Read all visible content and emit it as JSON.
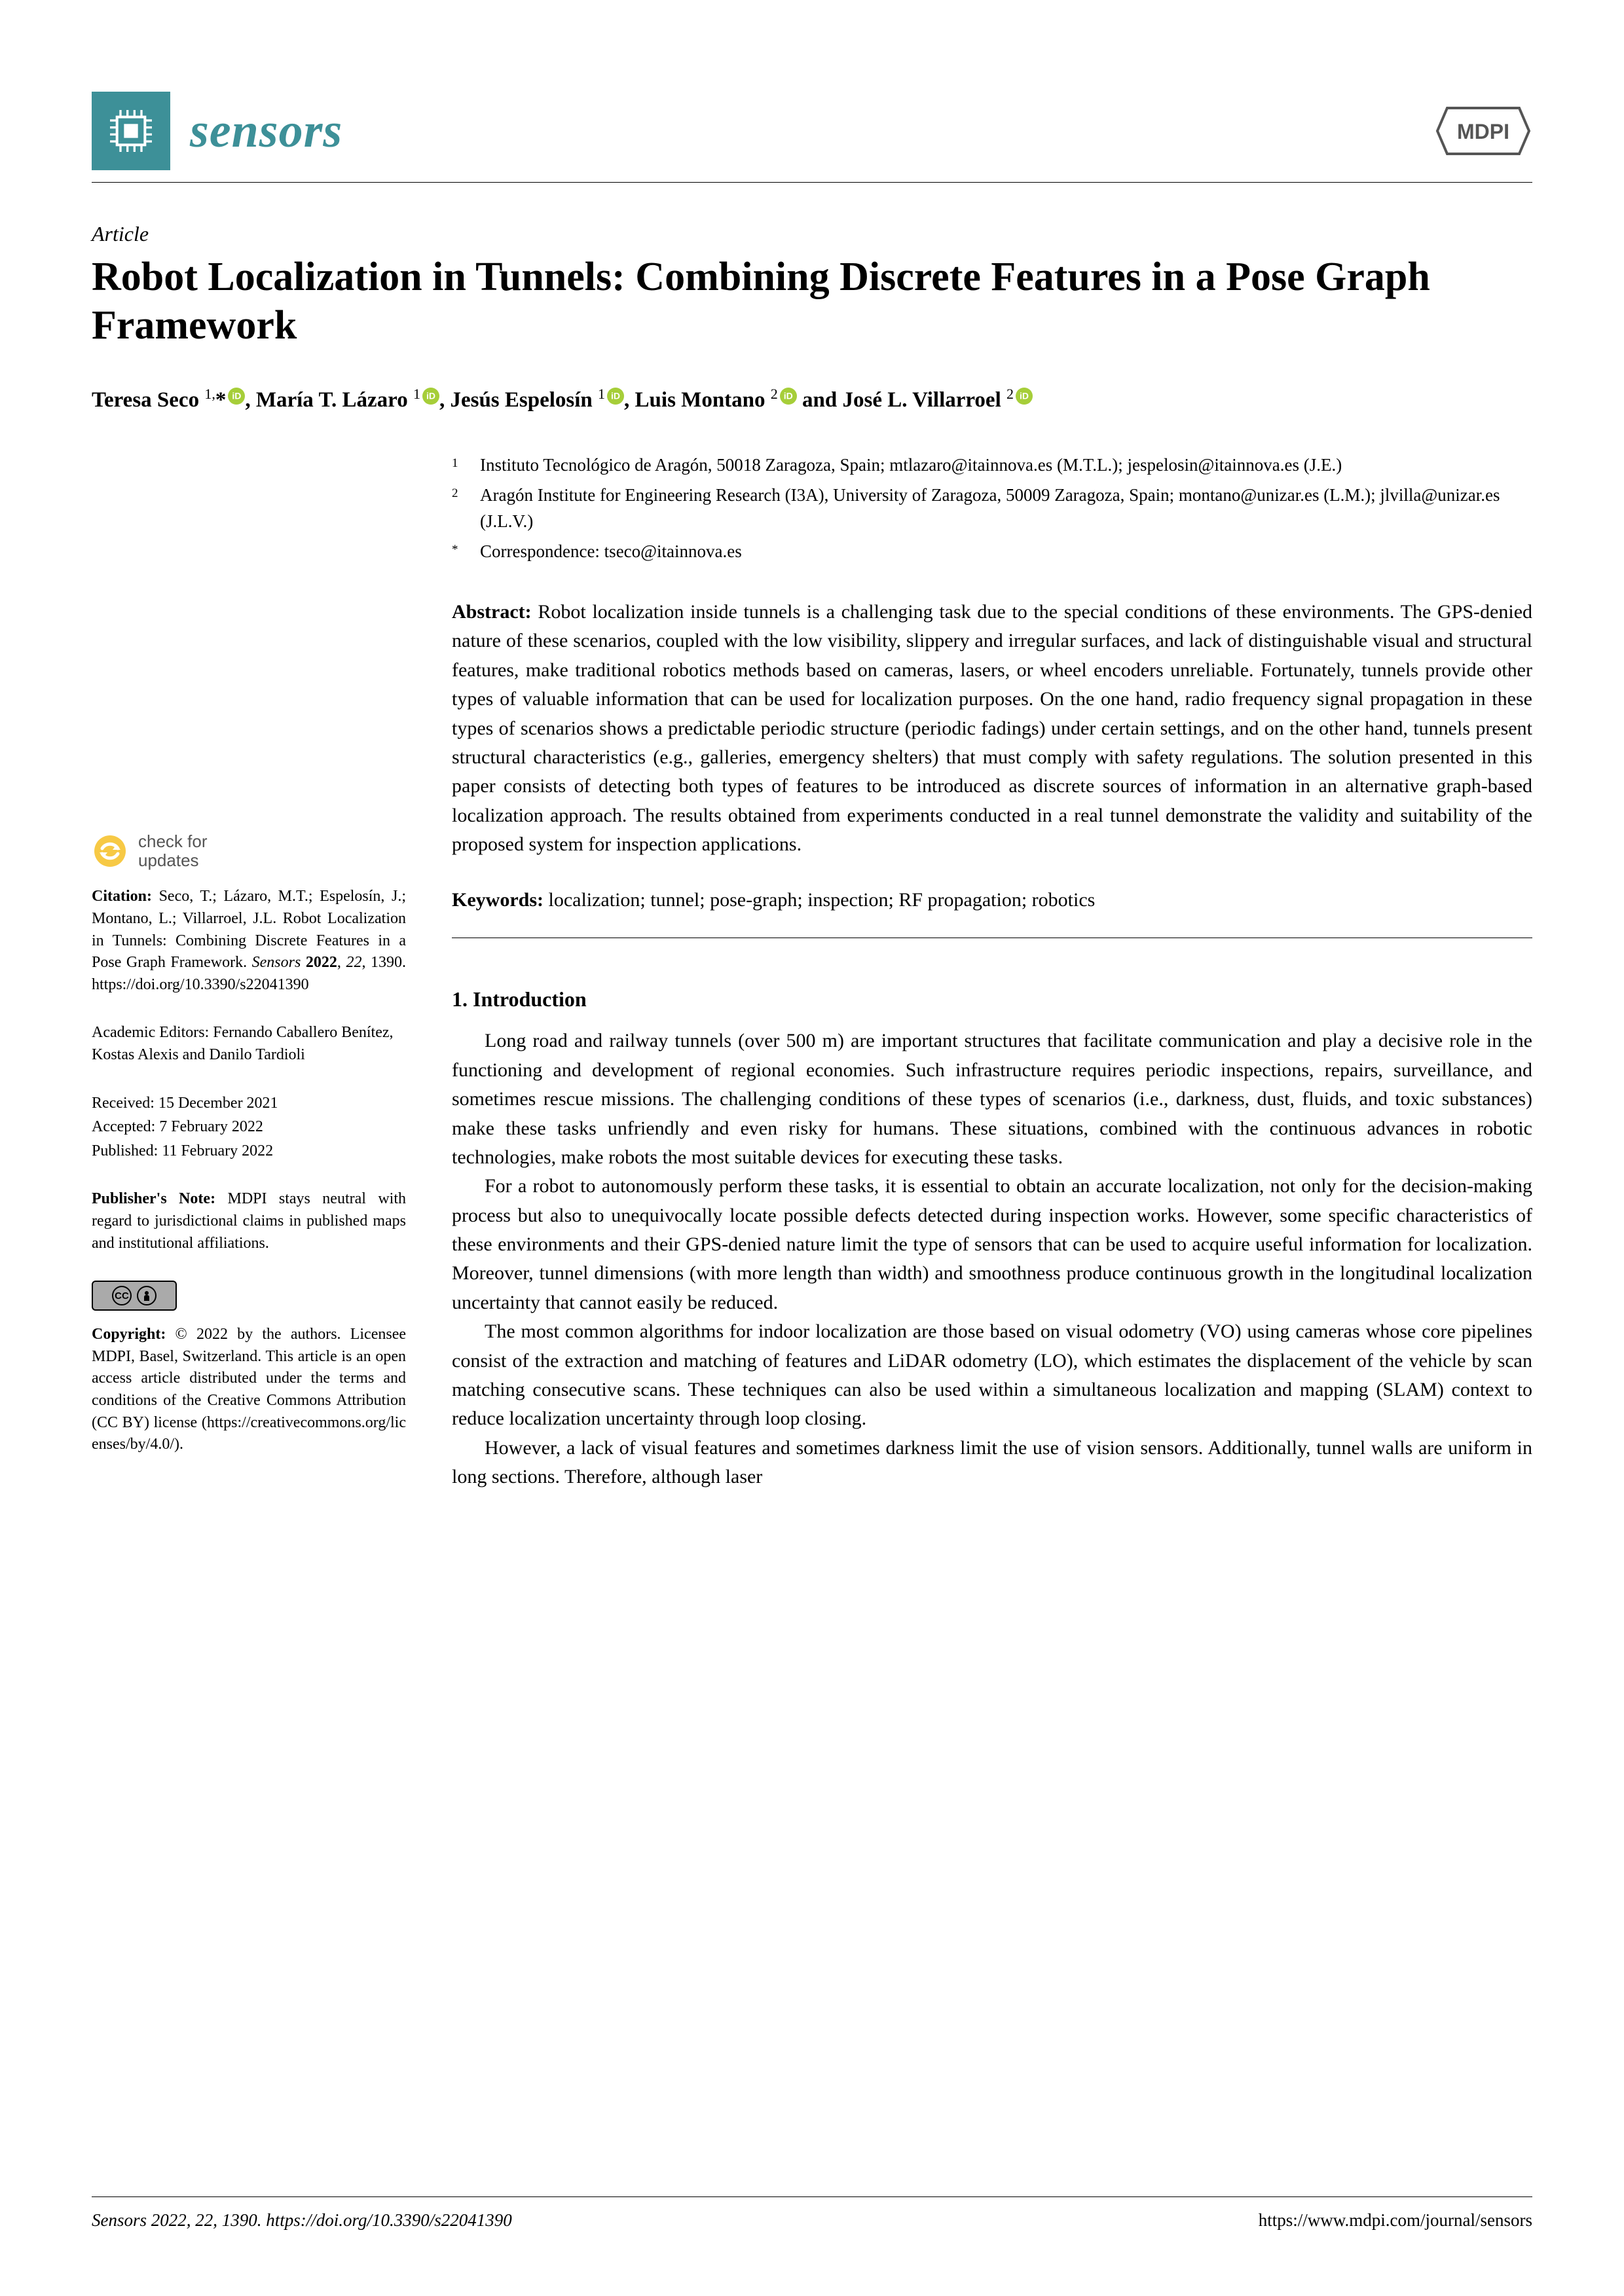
{
  "journal": {
    "name": "sensors",
    "brand_color": "#3d9098",
    "publisher": "MDPI"
  },
  "article_type": "Article",
  "title": "Robot Localization in Tunnels: Combining Discrete Features in a Pose Graph Framework",
  "authors_html": "Teresa Seco <span class='sup'>1,</span>*<span class='orcid'></span>, María T. Lázaro <span class='sup'>1</span><span class='orcid'></span>, Jesús Espelosín <span class='sup'>1</span><span class='orcid'></span>, Luis Montano <span class='sup'>2</span><span class='orcid'></span> and José L. Villarroel <span class='sup'>2</span><span class='orcid'></span>",
  "affiliations": [
    {
      "num": "1",
      "text": "Instituto Tecnológico de Aragón, 50018 Zaragoza, Spain; mtlazaro@itainnova.es (M.T.L.); jespelosin@itainnova.es (J.E.)"
    },
    {
      "num": "2",
      "text": "Aragón Institute for Engineering Research (I3A), University of Zaragoza, 50009 Zaragoza, Spain; montano@unizar.es (L.M.); jlvilla@unizar.es (J.L.V.)"
    },
    {
      "num": "*",
      "text": "Correspondence: tseco@itainnova.es"
    }
  ],
  "abstract_label": "Abstract:",
  "abstract": "Robot localization inside tunnels is a challenging task due to the special conditions of these environments. The GPS-denied nature of these scenarios, coupled with the low visibility, slippery and irregular surfaces, and lack of distinguishable visual and structural features, make traditional robotics methods based on cameras, lasers, or wheel encoders unreliable. Fortunately, tunnels provide other types of valuable information that can be used for localization purposes. On the one hand, radio frequency signal propagation in these types of scenarios shows a predictable periodic structure (periodic fadings) under certain settings, and on the other hand, tunnels present structural characteristics (e.g., galleries, emergency shelters) that must comply with safety regulations. The solution presented in this paper consists of detecting both types of features to be introduced as discrete sources of information in an alternative graph-based localization approach. The results obtained from experiments conducted in a real tunnel demonstrate the validity and suitability of the proposed system for inspection applications.",
  "keywords_label": "Keywords:",
  "keywords": "localization; tunnel; pose-graph; inspection; RF propagation; robotics",
  "section1_heading": "1. Introduction",
  "paragraphs": [
    "Long road and railway tunnels (over 500 m) are important structures that facilitate communication and play a decisive role in the functioning and development of regional economies. Such infrastructure requires periodic inspections, repairs, surveillance, and sometimes rescue missions. The challenging conditions of these types of scenarios (i.e., darkness, dust, fluids, and toxic substances) make these tasks unfriendly and even risky for humans. These situations, combined with the continuous advances in robotic technologies, make robots the most suitable devices for executing these tasks.",
    "For a robot to autonomously perform these tasks, it is essential to obtain an accurate localization, not only for the decision-making process but also to unequivocally locate possible defects detected during inspection works. However, some specific characteristics of these environments and their GPS-denied nature limit the type of sensors that can be used to acquire useful information for localization. Moreover, tunnel dimensions (with more length than width) and smoothness produce continuous growth in the longitudinal localization uncertainty that cannot easily be reduced.",
    "The most common algorithms for indoor localization are those based on visual odometry (VO) using cameras whose core pipelines consist of the extraction and matching of features and LiDAR odometry (LO), which estimates the displacement of the vehicle by scan matching consecutive scans. These techniques can also be used within a simultaneous localization and mapping (SLAM) context to reduce localization uncertainty through loop closing.",
    "However, a lack of visual features and sometimes darkness limit the use of vision sensors. Additionally, tunnel walls are uniform in long sections. Therefore, although laser"
  ],
  "sidebar": {
    "check_updates": "check for\nupdates",
    "citation_label": "Citation:",
    "citation": "Seco, T.; Lázaro, M.T.; Espelosín, J.; Montano, L.; Villarroel, J.L. Robot Localization in Tunnels: Combining Discrete Features in a Pose Graph Framework. Sensors 2022, 22, 1390. https://doi.org/10.3390/s22041390",
    "editors_label": "Academic Editors:",
    "editors": "Fernando Caballero Benítez, Kostas Alexis and Danilo Tardioli",
    "received": "Received: 15 December 2021",
    "accepted": "Accepted: 7 February 2022",
    "published": "Published: 11 February 2022",
    "pub_note_label": "Publisher's Note:",
    "pub_note": "MDPI stays neutral with regard to jurisdictional claims in published maps and institutional affiliations.",
    "copyright_label": "Copyright:",
    "copyright": "© 2022 by the authors. Licensee MDPI, Basel, Switzerland. This article is an open access article distributed under the terms and conditions of the Creative Commons Attribution (CC BY) license (https://creativecommons.org/licenses/by/4.0/)."
  },
  "footer": {
    "left": "Sensors 2022, 22, 1390. https://doi.org/10.3390/s22041390",
    "right": "https://www.mdpi.com/journal/sensors"
  }
}
